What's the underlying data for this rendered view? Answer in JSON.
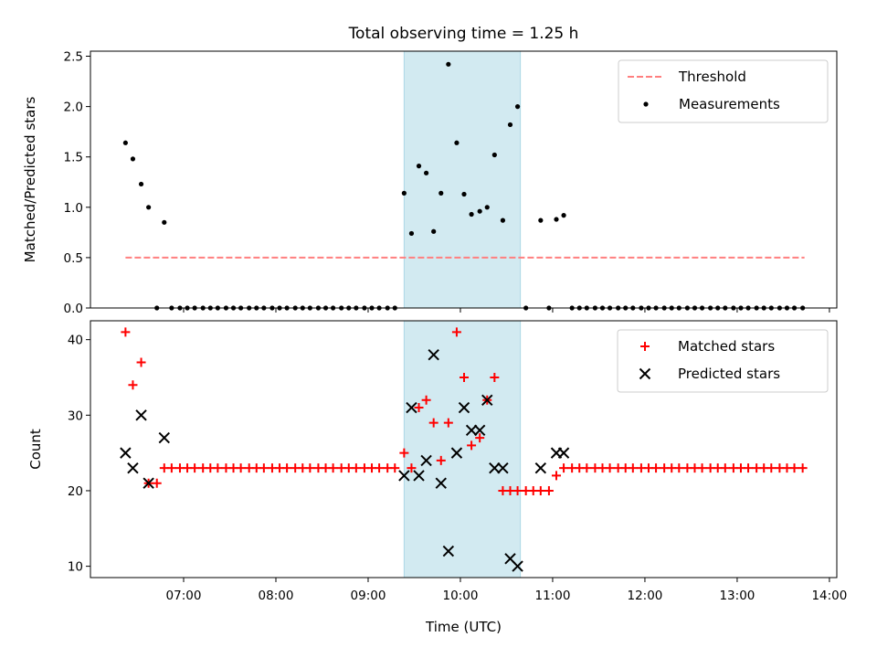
{
  "chart_data": [
    {
      "type": "scatter",
      "title": "Total observing time = 1.25 h",
      "ylabel": "Matched/Predicted stars",
      "xlabel": "",
      "x_unit": "time of day (UTC), decimal hours",
      "xlim": [
        5.99,
        14.08
      ],
      "ylim": [
        0,
        2.55
      ],
      "yticks": [
        "0.0",
        "0.5",
        "1.0",
        "1.5",
        "2.0",
        "2.5"
      ],
      "ytick_values": [
        0,
        0.5,
        1.0,
        1.5,
        2.0,
        2.5
      ],
      "xtick_values": [
        7,
        8,
        9,
        10,
        11,
        12,
        13,
        14
      ],
      "shaded_region": {
        "x": [
          9.39,
          10.65
        ],
        "color": "#add8e6"
      },
      "legend_position": "upper-right",
      "series": [
        {
          "name": "Threshold",
          "kind": "dashed-line",
          "color": "#ff7f7f",
          "x": [
            6.37,
            13.73
          ],
          "y": [
            0.5,
            0.5
          ]
        },
        {
          "name": "Measurements",
          "kind": "dots",
          "color": "#000000",
          "points": [
            [
              6.37,
              1.64
            ],
            [
              6.45,
              1.48
            ],
            [
              6.54,
              1.23
            ],
            [
              6.62,
              1.0
            ],
            [
              6.79,
              0.85
            ],
            [
              6.71,
              0
            ],
            [
              6.87,
              0
            ],
            [
              6.96,
              0
            ],
            [
              7.04,
              0
            ],
            [
              7.12,
              0
            ],
            [
              7.21,
              0
            ],
            [
              7.29,
              0
            ],
            [
              7.37,
              0
            ],
            [
              7.46,
              0
            ],
            [
              7.54,
              0
            ],
            [
              7.62,
              0
            ],
            [
              7.71,
              0
            ],
            [
              7.79,
              0
            ],
            [
              7.87,
              0
            ],
            [
              7.96,
              0
            ],
            [
              8.04,
              0
            ],
            [
              8.12,
              0
            ],
            [
              8.21,
              0
            ],
            [
              8.29,
              0
            ],
            [
              8.37,
              0
            ],
            [
              8.46,
              0
            ],
            [
              8.54,
              0
            ],
            [
              8.62,
              0
            ],
            [
              8.71,
              0
            ],
            [
              8.79,
              0
            ],
            [
              8.87,
              0
            ],
            [
              8.96,
              0
            ],
            [
              9.04,
              0
            ],
            [
              9.12,
              0
            ],
            [
              9.21,
              0
            ],
            [
              9.29,
              0
            ],
            [
              9.39,
              1.14
            ],
            [
              9.47,
              0.74
            ],
            [
              9.55,
              1.41
            ],
            [
              9.63,
              1.34
            ],
            [
              9.71,
              0.76
            ],
            [
              9.79,
              1.14
            ],
            [
              9.87,
              2.42
            ],
            [
              9.96,
              1.64
            ],
            [
              10.04,
              1.13
            ],
            [
              10.12,
              0.93
            ],
            [
              10.21,
              0.96
            ],
            [
              10.29,
              1.0
            ],
            [
              10.37,
              1.52
            ],
            [
              10.46,
              0.87
            ],
            [
              10.54,
              1.82
            ],
            [
              10.62,
              2.0
            ],
            [
              10.87,
              0.87
            ],
            [
              11.04,
              0.88
            ],
            [
              11.12,
              0.92
            ],
            [
              10.71,
              0
            ],
            [
              10.96,
              0
            ],
            [
              11.21,
              0
            ],
            [
              11.29,
              0
            ],
            [
              11.37,
              0
            ],
            [
              11.46,
              0
            ],
            [
              11.54,
              0
            ],
            [
              11.62,
              0
            ],
            [
              11.71,
              0
            ],
            [
              11.79,
              0
            ],
            [
              11.87,
              0
            ],
            [
              11.96,
              0
            ],
            [
              12.04,
              0
            ],
            [
              12.12,
              0
            ],
            [
              12.21,
              0
            ],
            [
              12.29,
              0
            ],
            [
              12.37,
              0
            ],
            [
              12.46,
              0
            ],
            [
              12.54,
              0
            ],
            [
              12.62,
              0
            ],
            [
              12.71,
              0
            ],
            [
              12.79,
              0
            ],
            [
              12.87,
              0
            ],
            [
              12.96,
              0
            ],
            [
              13.04,
              0
            ],
            [
              13.12,
              0
            ],
            [
              13.21,
              0
            ],
            [
              13.29,
              0
            ],
            [
              13.37,
              0
            ],
            [
              13.46,
              0
            ],
            [
              13.54,
              0
            ],
            [
              13.62,
              0
            ],
            [
              13.71,
              0
            ]
          ]
        }
      ]
    },
    {
      "type": "scatter",
      "title": "",
      "ylabel": "Count",
      "xlabel": "Time (UTC)",
      "x_unit": "time of day (UTC), decimal hours",
      "xlim": [
        5.99,
        14.08
      ],
      "ylim": [
        8.5,
        42.5
      ],
      "yticks": [
        "10",
        "20",
        "30",
        "40"
      ],
      "ytick_values": [
        10,
        20,
        30,
        40
      ],
      "xtick_values": [
        7,
        8,
        9,
        10,
        11,
        12,
        13,
        14
      ],
      "xticks": [
        "07:00",
        "08:00",
        "09:00",
        "10:00",
        "11:00",
        "12:00",
        "13:00",
        "14:00"
      ],
      "shaded_region": {
        "x": [
          9.39,
          10.65
        ],
        "color": "#add8e6"
      },
      "legend_position": "upper-right",
      "series": [
        {
          "name": "Matched stars",
          "kind": "plus",
          "color": "#ff0000",
          "points": [
            [
              6.37,
              41
            ],
            [
              6.45,
              34
            ],
            [
              6.54,
              37
            ],
            [
              6.62,
              21
            ],
            [
              6.71,
              21
            ],
            [
              6.79,
              23
            ],
            [
              6.87,
              23
            ],
            [
              6.96,
              23
            ],
            [
              7.04,
              23
            ],
            [
              7.12,
              23
            ],
            [
              7.21,
              23
            ],
            [
              7.29,
              23
            ],
            [
              7.37,
              23
            ],
            [
              7.46,
              23
            ],
            [
              7.54,
              23
            ],
            [
              7.62,
              23
            ],
            [
              7.71,
              23
            ],
            [
              7.79,
              23
            ],
            [
              7.87,
              23
            ],
            [
              7.96,
              23
            ],
            [
              8.04,
              23
            ],
            [
              8.12,
              23
            ],
            [
              8.21,
              23
            ],
            [
              8.29,
              23
            ],
            [
              8.37,
              23
            ],
            [
              8.46,
              23
            ],
            [
              8.54,
              23
            ],
            [
              8.62,
              23
            ],
            [
              8.71,
              23
            ],
            [
              8.79,
              23
            ],
            [
              8.87,
              23
            ],
            [
              8.96,
              23
            ],
            [
              9.04,
              23
            ],
            [
              9.12,
              23
            ],
            [
              9.21,
              23
            ],
            [
              9.29,
              23
            ],
            [
              9.39,
              25
            ],
            [
              9.47,
              23
            ],
            [
              9.55,
              31
            ],
            [
              9.63,
              32
            ],
            [
              9.71,
              29
            ],
            [
              9.79,
              24
            ],
            [
              9.87,
              29
            ],
            [
              9.96,
              41
            ],
            [
              10.04,
              35
            ],
            [
              10.12,
              26
            ],
            [
              10.21,
              27
            ],
            [
              10.29,
              32
            ],
            [
              10.37,
              35
            ],
            [
              10.46,
              20
            ],
            [
              10.54,
              20
            ],
            [
              10.62,
              20
            ],
            [
              10.71,
              20
            ],
            [
              10.79,
              20
            ],
            [
              10.87,
              20
            ],
            [
              10.96,
              20
            ],
            [
              11.04,
              22
            ],
            [
              11.12,
              23
            ],
            [
              11.21,
              23
            ],
            [
              11.29,
              23
            ],
            [
              11.37,
              23
            ],
            [
              11.46,
              23
            ],
            [
              11.54,
              23
            ],
            [
              11.62,
              23
            ],
            [
              11.71,
              23
            ],
            [
              11.79,
              23
            ],
            [
              11.87,
              23
            ],
            [
              11.96,
              23
            ],
            [
              12.04,
              23
            ],
            [
              12.12,
              23
            ],
            [
              12.21,
              23
            ],
            [
              12.29,
              23
            ],
            [
              12.37,
              23
            ],
            [
              12.46,
              23
            ],
            [
              12.54,
              23
            ],
            [
              12.62,
              23
            ],
            [
              12.71,
              23
            ],
            [
              12.79,
              23
            ],
            [
              12.87,
              23
            ],
            [
              12.96,
              23
            ],
            [
              13.04,
              23
            ],
            [
              13.12,
              23
            ],
            [
              13.21,
              23
            ],
            [
              13.29,
              23
            ],
            [
              13.37,
              23
            ],
            [
              13.46,
              23
            ],
            [
              13.54,
              23
            ],
            [
              13.62,
              23
            ],
            [
              13.71,
              23
            ]
          ]
        },
        {
          "name": "Predicted stars",
          "kind": "cross",
          "color": "#000000",
          "points": [
            [
              6.37,
              25
            ],
            [
              6.45,
              23
            ],
            [
              6.54,
              30
            ],
            [
              6.62,
              21
            ],
            [
              6.79,
              27
            ],
            [
              9.39,
              22
            ],
            [
              9.47,
              31
            ],
            [
              9.55,
              22
            ],
            [
              9.63,
              24
            ],
            [
              9.71,
              38
            ],
            [
              9.79,
              21
            ],
            [
              9.87,
              12
            ],
            [
              9.96,
              25
            ],
            [
              10.04,
              31
            ],
            [
              10.12,
              28
            ],
            [
              10.21,
              28
            ],
            [
              10.29,
              32
            ],
            [
              10.37,
              23
            ],
            [
              10.46,
              23
            ],
            [
              10.54,
              11
            ],
            [
              10.62,
              10
            ],
            [
              10.87,
              23
            ],
            [
              11.04,
              25
            ],
            [
              11.12,
              25
            ]
          ]
        }
      ]
    }
  ]
}
